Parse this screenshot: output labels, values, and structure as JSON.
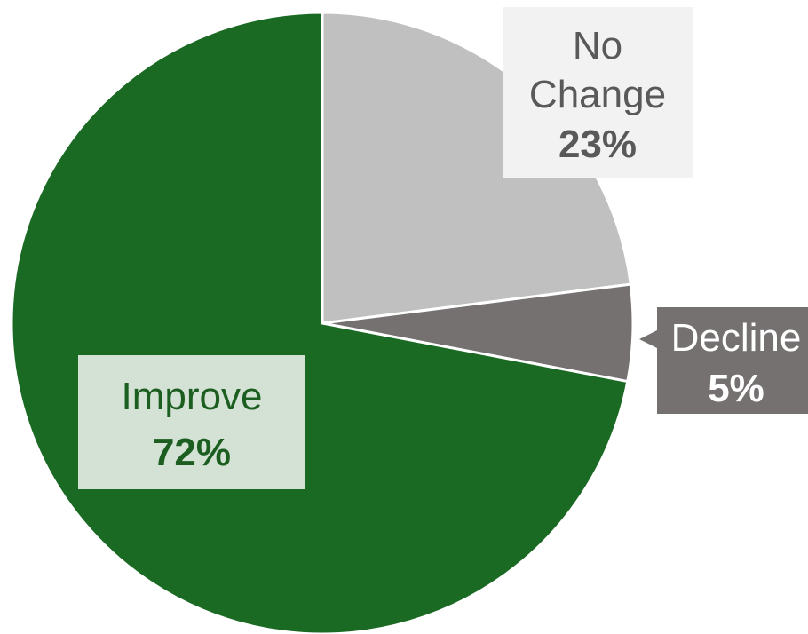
{
  "chart_data": {
    "type": "pie",
    "title": "",
    "categories": [
      "No Change",
      "Decline",
      "Improve"
    ],
    "values": [
      23,
      5,
      72
    ],
    "series": [
      {
        "values": [
          23,
          5,
          72
        ]
      }
    ],
    "start": "top",
    "direction": "clockwise",
    "colors": [
      "#c0c0c0",
      "#767171",
      "#1b6a24"
    ],
    "slices": [
      {
        "name": "No Change",
        "name_lines": [
          "No",
          "Change"
        ],
        "percent_label": "23%",
        "value": 23,
        "color": "#c0c0c0",
        "label_bg": "#f2f2f2",
        "label_text_color": "#595959"
      },
      {
        "name": "Decline",
        "name_lines": [
          "Decline"
        ],
        "percent_label": "5%",
        "value": 5,
        "color": "#767171",
        "label_bg": "#767171",
        "label_text_color": "#ffffff"
      },
      {
        "name": "Improve",
        "name_lines": [
          "Improve"
        ],
        "percent_label": "72%",
        "value": 72,
        "color": "#1b6a24",
        "label_bg": "#d3e2d5",
        "label_text_color": "#1b5e20"
      }
    ],
    "legend": "none",
    "slice_border_color": "#ffffff"
  }
}
